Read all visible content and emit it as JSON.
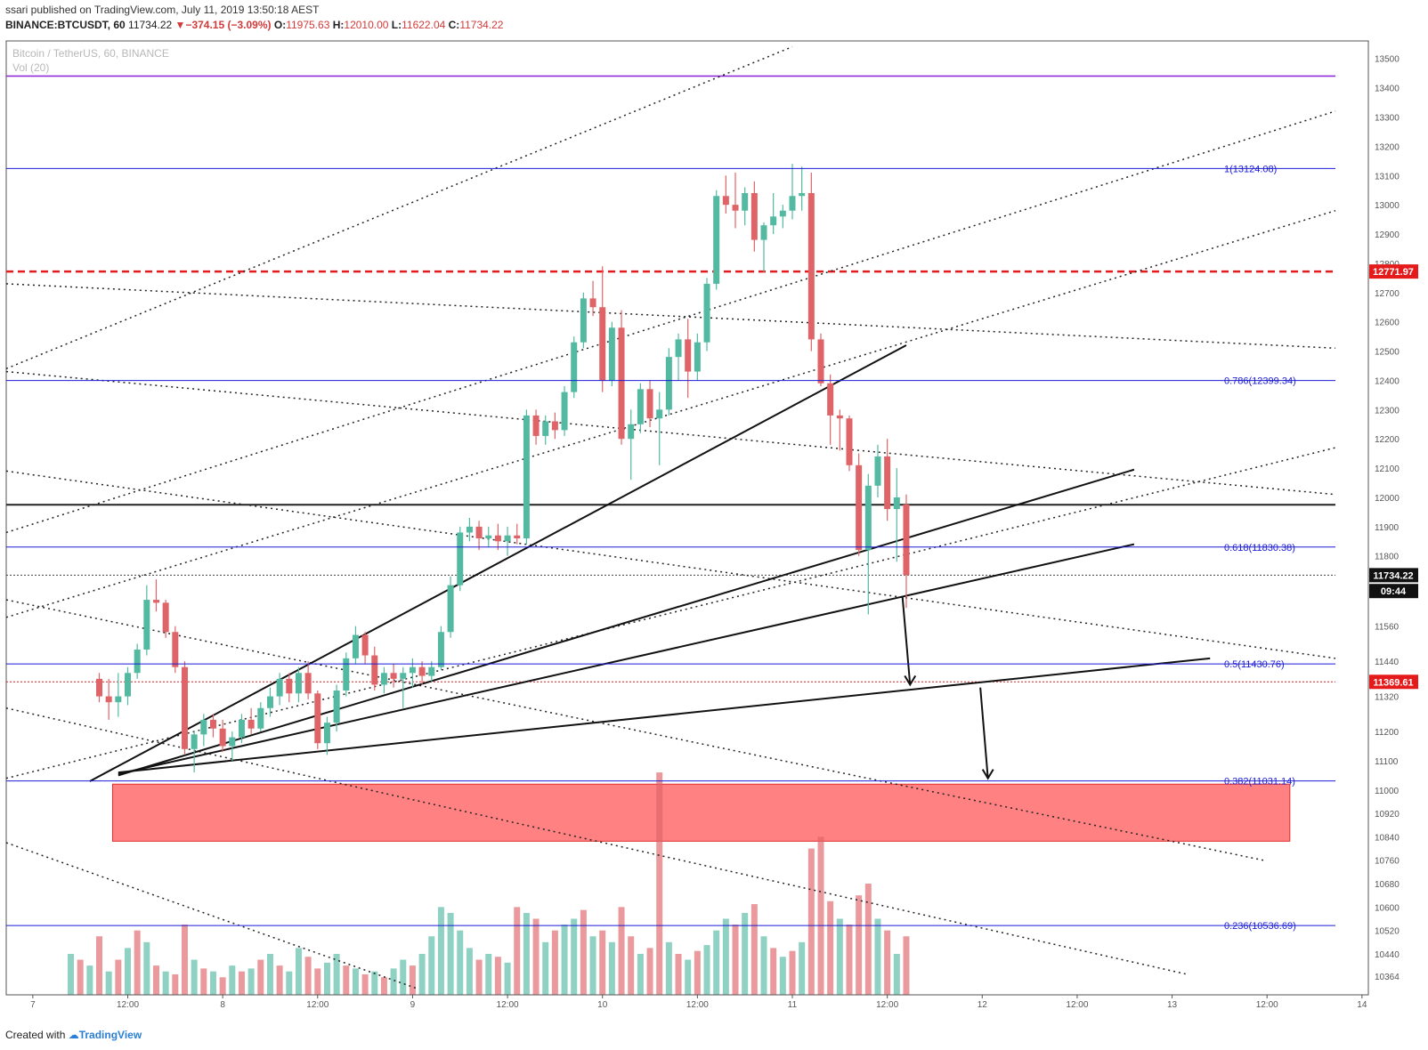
{
  "header": {
    "published": "ssari published on TradingView.com, July 11, 2019 13:50:18 AEST",
    "symbol": "BINANCE:BTCUSDT, 60",
    "last": "11734.22",
    "change_arrow": "▼",
    "change": "−374.15 (−3.09%)",
    "o_label": "O:",
    "o": "11975.63",
    "h_label": "H:",
    "h": "12010.00",
    "l_label": "L:",
    "l": "11622.04",
    "c_label": "C:",
    "c": "11734.22"
  },
  "pane": {
    "title": "Bitcoin / TetherUS, 60, BINANCE",
    "vol_label": "Vol (20)"
  },
  "footer": {
    "created_with": "Created with",
    "brand": "TradingView"
  },
  "colors": {
    "up": "#53b9a1",
    "down": "#df6468",
    "fib": "#1b1bd6",
    "resistance": "#e51b1b",
    "purple": "#8a1fd6",
    "zone": "#ff6b6b"
  },
  "chart_data": {
    "type": "candlestick",
    "instrument": "Bitcoin / TetherUS, 60, BINANCE",
    "ylim": [
      10300,
      13560
    ],
    "y_ticks": [
      13500,
      13400,
      13300,
      13200,
      13100,
      13000,
      12900,
      12800,
      12700,
      12600,
      12500,
      12400,
      12300,
      12200,
      12100,
      12000,
      11900,
      11800,
      11560,
      11440,
      11320,
      11200,
      11100,
      11000,
      10920,
      10840,
      10760,
      10680,
      10600,
      10520,
      10440,
      10364
    ],
    "x_ticks": [
      {
        "label": "7",
        "x": 6.8
      },
      {
        "label": "12:00",
        "x": 7.3
      },
      {
        "label": "8",
        "x": 7.8
      },
      {
        "label": "12:00",
        "x": 8.3
      },
      {
        "label": "9",
        "x": 8.8
      },
      {
        "label": "12:00",
        "x": 9.3
      },
      {
        "label": "10",
        "x": 9.8
      },
      {
        "label": "12:00",
        "x": 10.3
      },
      {
        "label": "11",
        "x": 10.8
      },
      {
        "label": "12:00",
        "x": 11.3
      },
      {
        "label": "12",
        "x": 11.8
      },
      {
        "label": "12:00",
        "x": 12.3
      },
      {
        "label": "13",
        "x": 12.8
      },
      {
        "label": "12:00",
        "x": 13.3
      },
      {
        "label": "14",
        "x": 13.8
      }
    ],
    "price_labels": [
      {
        "text": "12771.97",
        "value": 12771.97,
        "color": "#e51b1b"
      },
      {
        "text": "11734.22",
        "value": 11734.22,
        "color": "#111111"
      },
      {
        "text": "09:44",
        "value": 11680,
        "color": "#111111"
      },
      {
        "text": "11369.61",
        "value": 11369.61,
        "color": "#e51b1b"
      }
    ],
    "fib_levels": [
      {
        "label": "1(13124.08)",
        "value": 13124.08
      },
      {
        "label": "0.786(12399.34)",
        "value": 12399.34
      },
      {
        "label": "0.618(11830.38)",
        "value": 11830.38
      },
      {
        "label": "0.5(11430.76)",
        "value": 11430.76
      },
      {
        "label": "0.382(11031.14)",
        "value": 11031.14
      },
      {
        "label": "0.236(10536.69)",
        "value": 10536.69
      }
    ],
    "horizontal_lines": [
      {
        "value": 13440,
        "color": "#8a1fd6",
        "style": "solid"
      },
      {
        "value": 12771.97,
        "color": "#e51b1b",
        "style": "dashed"
      },
      {
        "value": 11975,
        "color": "#222222",
        "style": "solid"
      },
      {
        "value": 11734.22,
        "color": "#444444",
        "style": "dotted"
      },
      {
        "value": 11369.61,
        "color": "#e51b1b",
        "style": "dotted"
      }
    ],
    "zone": {
      "x0": 7.22,
      "x1": 13.42,
      "y0": 10825,
      "y1": 11020
    },
    "trendlines_solid": [
      [
        [
          7.1,
          11030
        ],
        [
          11.4,
          12520
        ]
      ],
      [
        [
          7.25,
          11050
        ],
        [
          12.6,
          12095
        ]
      ],
      [
        [
          7.25,
          11055
        ],
        [
          12.6,
          11840
        ]
      ],
      [
        [
          7.25,
          11060
        ],
        [
          13.0,
          11450
        ]
      ]
    ],
    "trendlines_dotted": [
      [
        [
          6.66,
          12440
        ],
        [
          10.8,
          13540
        ]
      ],
      [
        [
          6.66,
          11880
        ],
        [
          13.66,
          13320
        ]
      ],
      [
        [
          6.66,
          11590
        ],
        [
          13.66,
          12980
        ]
      ],
      [
        [
          6.66,
          11040
        ],
        [
          13.66,
          12170
        ]
      ],
      [
        [
          6.66,
          12730
        ],
        [
          13.66,
          12510
        ]
      ],
      [
        [
          6.66,
          12430
        ],
        [
          13.66,
          12010
        ]
      ],
      [
        [
          6.66,
          12090
        ],
        [
          13.66,
          11450
        ]
      ],
      [
        [
          6.66,
          11650
        ],
        [
          13.28,
          10760
        ]
      ],
      [
        [
          6.66,
          11280
        ],
        [
          12.88,
          10370
        ]
      ],
      [
        [
          6.66,
          10820
        ],
        [
          8.83,
          10320
        ]
      ]
    ],
    "arrows": [
      [
        [
          11.38,
          11660
        ],
        [
          11.42,
          11360
        ]
      ],
      [
        [
          11.79,
          11350
        ],
        [
          11.83,
          11040
        ]
      ]
    ],
    "candles": [
      [
        7.15,
        11380,
        11400,
        11300,
        11320
      ],
      [
        7.2,
        11320,
        11380,
        11240,
        11300
      ],
      [
        7.25,
        11300,
        11400,
        11250,
        11320
      ],
      [
        7.3,
        11320,
        11420,
        11290,
        11400
      ],
      [
        7.35,
        11400,
        11500,
        11380,
        11480
      ],
      [
        7.4,
        11480,
        11700,
        11460,
        11650
      ],
      [
        7.45,
        11650,
        11720,
        11610,
        11640
      ],
      [
        7.5,
        11640,
        11650,
        11520,
        11540
      ],
      [
        7.55,
        11540,
        11560,
        11400,
        11420
      ],
      [
        7.6,
        11420,
        11440,
        11120,
        11140
      ],
      [
        7.65,
        11140,
        11200,
        11060,
        11190
      ],
      [
        7.7,
        11190,
        11260,
        11150,
        11240
      ],
      [
        7.75,
        11240,
        11260,
        11180,
        11210
      ],
      [
        7.8,
        11210,
        11240,
        11130,
        11150
      ],
      [
        7.85,
        11150,
        11200,
        11100,
        11180
      ],
      [
        7.9,
        11180,
        11260,
        11160,
        11240
      ],
      [
        7.95,
        11240,
        11280,
        11190,
        11210
      ],
      [
        8.0,
        11210,
        11300,
        11200,
        11280
      ],
      [
        8.05,
        11280,
        11350,
        11250,
        11320
      ],
      [
        8.1,
        11320,
        11400,
        11290,
        11380
      ],
      [
        8.15,
        11380,
        11400,
        11300,
        11330
      ],
      [
        8.2,
        11330,
        11420,
        11300,
        11400
      ],
      [
        8.25,
        11400,
        11440,
        11310,
        11330
      ],
      [
        8.3,
        11330,
        11340,
        11140,
        11160
      ],
      [
        8.35,
        11160,
        11250,
        11120,
        11230
      ],
      [
        8.4,
        11230,
        11360,
        11200,
        11340
      ],
      [
        8.45,
        11340,
        11470,
        11320,
        11450
      ],
      [
        8.5,
        11450,
        11560,
        11430,
        11530
      ],
      [
        8.55,
        11530,
        11540,
        11430,
        11460
      ],
      [
        8.6,
        11460,
        11490,
        11340,
        11360
      ],
      [
        8.65,
        11360,
        11420,
        11330,
        11400
      ],
      [
        8.7,
        11400,
        11430,
        11350,
        11380
      ],
      [
        8.75,
        11380,
        11420,
        11280,
        11400
      ],
      [
        8.8,
        11400,
        11450,
        11350,
        11420
      ],
      [
        8.85,
        11420,
        11440,
        11360,
        11390
      ],
      [
        8.9,
        11390,
        11440,
        11370,
        11420
      ],
      [
        8.95,
        11420,
        11560,
        11410,
        11540
      ],
      [
        9.0,
        11540,
        11730,
        11520,
        11700
      ],
      [
        9.05,
        11700,
        11900,
        11680,
        11880
      ],
      [
        9.1,
        11880,
        11930,
        11850,
        11900
      ],
      [
        9.15,
        11900,
        11920,
        11820,
        11860
      ],
      [
        9.2,
        11860,
        11900,
        11830,
        11870
      ],
      [
        9.25,
        11870,
        11910,
        11820,
        11850
      ],
      [
        9.3,
        11850,
        11900,
        11800,
        11870
      ],
      [
        9.35,
        11870,
        11910,
        11840,
        11860
      ],
      [
        9.4,
        11860,
        12300,
        11840,
        12280
      ],
      [
        9.45,
        12280,
        12300,
        12180,
        12210
      ],
      [
        9.5,
        12210,
        12280,
        12180,
        12260
      ],
      [
        9.55,
        12260,
        12290,
        12200,
        12230
      ],
      [
        9.6,
        12230,
        12380,
        12210,
        12360
      ],
      [
        9.65,
        12360,
        12550,
        12340,
        12530
      ],
      [
        9.7,
        12530,
        12700,
        12510,
        12680
      ],
      [
        9.75,
        12680,
        12740,
        12620,
        12650
      ],
      [
        9.8,
        12650,
        12790,
        12360,
        12400
      ],
      [
        9.85,
        12400,
        12600,
        12380,
        12580
      ],
      [
        9.9,
        12580,
        12640,
        12180,
        12200
      ],
      [
        9.95,
        12200,
        12300,
        12060,
        12250
      ],
      [
        10.0,
        12250,
        12390,
        12220,
        12370
      ],
      [
        10.05,
        12370,
        12400,
        12240,
        12270
      ],
      [
        10.1,
        12270,
        12360,
        12110,
        12300
      ],
      [
        10.15,
        12300,
        12510,
        12280,
        12480
      ],
      [
        10.2,
        12480,
        12560,
        12400,
        12540
      ],
      [
        10.25,
        12540,
        12610,
        12340,
        12430
      ],
      [
        10.3,
        12430,
        12560,
        12400,
        12530
      ],
      [
        10.35,
        12530,
        12750,
        12500,
        12730
      ],
      [
        10.4,
        12730,
        13050,
        12710,
        13030
      ],
      [
        10.45,
        13030,
        13100,
        12970,
        13000
      ],
      [
        10.5,
        13000,
        13110,
        12920,
        12980
      ],
      [
        10.55,
        12980,
        13060,
        12930,
        13040
      ],
      [
        10.6,
        13040,
        13080,
        12840,
        12880
      ],
      [
        10.65,
        12880,
        12940,
        12770,
        12930
      ],
      [
        10.7,
        12930,
        13040,
        12900,
        12960
      ],
      [
        10.75,
        12960,
        13000,
        12920,
        12980
      ],
      [
        10.8,
        12980,
        13140,
        12950,
        13030
      ],
      [
        10.85,
        13030,
        13130,
        12980,
        13040
      ],
      [
        10.9,
        13040,
        13110,
        12500,
        12540
      ],
      [
        10.95,
        12540,
        12560,
        12380,
        12390
      ],
      [
        11.0,
        12390,
        12420,
        12180,
        12280
      ],
      [
        11.05,
        12280,
        12300,
        12160,
        12270
      ],
      [
        11.1,
        12270,
        12280,
        12090,
        12110
      ],
      [
        11.15,
        12110,
        12150,
        11800,
        11820
      ],
      [
        11.2,
        11820,
        12080,
        11600,
        12040
      ],
      [
        11.25,
        12040,
        12180,
        12000,
        12140
      ],
      [
        11.3,
        12140,
        12200,
        11920,
        11960
      ],
      [
        11.35,
        11960,
        12100,
        11780,
        12000
      ],
      [
        11.4,
        11975.63,
        12010,
        11622.04,
        11734.22
      ]
    ],
    "volume": [
      [
        7.0,
        10440,
        "up"
      ],
      [
        7.05,
        10420,
        "down"
      ],
      [
        7.1,
        10400,
        "up"
      ],
      [
        7.15,
        10500,
        "down"
      ],
      [
        7.2,
        10380,
        "up"
      ],
      [
        7.25,
        10420,
        "down"
      ],
      [
        7.3,
        10460,
        "up"
      ],
      [
        7.35,
        10520,
        "down"
      ],
      [
        7.4,
        10480,
        "up"
      ],
      [
        7.45,
        10400,
        "down"
      ],
      [
        7.5,
        10380,
        "up"
      ],
      [
        7.55,
        10370,
        "down"
      ],
      [
        7.6,
        10540,
        "down"
      ],
      [
        7.65,
        10420,
        "up"
      ],
      [
        7.7,
        10390,
        "down"
      ],
      [
        7.75,
        10380,
        "up"
      ],
      [
        7.8,
        10360,
        "down"
      ],
      [
        7.85,
        10400,
        "up"
      ],
      [
        7.9,
        10380,
        "down"
      ],
      [
        7.95,
        10390,
        "up"
      ],
      [
        8.0,
        10420,
        "down"
      ],
      [
        8.05,
        10440,
        "up"
      ],
      [
        8.1,
        10400,
        "down"
      ],
      [
        8.15,
        10380,
        "up"
      ],
      [
        8.2,
        10460,
        "up"
      ],
      [
        8.25,
        10430,
        "down"
      ],
      [
        8.3,
        10390,
        "down"
      ],
      [
        8.35,
        10410,
        "up"
      ],
      [
        8.4,
        10440,
        "up"
      ],
      [
        8.45,
        10400,
        "down"
      ],
      [
        8.5,
        10390,
        "up"
      ],
      [
        8.55,
        10370,
        "down"
      ],
      [
        8.6,
        10380,
        "up"
      ],
      [
        8.65,
        10360,
        "down"
      ],
      [
        8.7,
        10390,
        "up"
      ],
      [
        8.75,
        10420,
        "up"
      ],
      [
        8.8,
        10400,
        "down"
      ],
      [
        8.85,
        10440,
        "up"
      ],
      [
        8.9,
        10500,
        "up"
      ],
      [
        8.95,
        10600,
        "up"
      ],
      [
        9.0,
        10580,
        "up"
      ],
      [
        9.05,
        10520,
        "up"
      ],
      [
        9.1,
        10460,
        "up"
      ],
      [
        9.15,
        10420,
        "down"
      ],
      [
        9.2,
        10440,
        "up"
      ],
      [
        9.25,
        10430,
        "down"
      ],
      [
        9.3,
        10410,
        "up"
      ],
      [
        9.35,
        10600,
        "down"
      ],
      [
        9.4,
        10580,
        "up"
      ],
      [
        9.45,
        10560,
        "down"
      ],
      [
        9.5,
        10480,
        "up"
      ],
      [
        9.55,
        10520,
        "down"
      ],
      [
        9.6,
        10540,
        "up"
      ],
      [
        9.65,
        10560,
        "up"
      ],
      [
        9.7,
        10590,
        "down"
      ],
      [
        9.75,
        10500,
        "up"
      ],
      [
        9.8,
        10520,
        "down"
      ],
      [
        9.85,
        10480,
        "up"
      ],
      [
        9.9,
        10600,
        "down"
      ],
      [
        9.95,
        10500,
        "down"
      ],
      [
        10.0,
        10440,
        "up"
      ],
      [
        10.05,
        10460,
        "down"
      ],
      [
        10.1,
        11060,
        "down"
      ],
      [
        10.15,
        10480,
        "up"
      ],
      [
        10.2,
        10440,
        "down"
      ],
      [
        10.25,
        10420,
        "up"
      ],
      [
        10.3,
        10450,
        "down"
      ],
      [
        10.35,
        10470,
        "up"
      ],
      [
        10.4,
        10520,
        "up"
      ],
      [
        10.45,
        10560,
        "up"
      ],
      [
        10.5,
        10540,
        "down"
      ],
      [
        10.55,
        10580,
        "up"
      ],
      [
        10.6,
        10610,
        "down"
      ],
      [
        10.65,
        10500,
        "up"
      ],
      [
        10.7,
        10460,
        "down"
      ],
      [
        10.75,
        10430,
        "up"
      ],
      [
        10.8,
        10450,
        "down"
      ],
      [
        10.85,
        10480,
        "up"
      ],
      [
        10.9,
        10800,
        "down"
      ],
      [
        10.95,
        10840,
        "down"
      ],
      [
        11.0,
        10620,
        "down"
      ],
      [
        11.05,
        10560,
        "up"
      ],
      [
        11.1,
        10540,
        "down"
      ],
      [
        11.15,
        10640,
        "down"
      ],
      [
        11.2,
        10680,
        "down"
      ],
      [
        11.25,
        10560,
        "up"
      ],
      [
        11.3,
        10520,
        "down"
      ],
      [
        11.35,
        10440,
        "up"
      ],
      [
        11.4,
        10500,
        "down"
      ]
    ]
  }
}
